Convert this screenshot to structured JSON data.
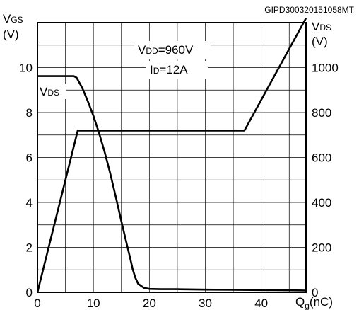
{
  "chart_data": {
    "type": "line",
    "figure_id": "GIPD300320151058MT",
    "y_left_label_main": "V",
    "y_left_label_sub": "GS",
    "y_left_unit": "(V)",
    "y_right_label_main": "V",
    "y_right_label_sub": "DS",
    "y_right_unit": "(V)",
    "x_label_main": "Q",
    "x_label_sub": "g",
    "x_label_unit": "(nC)",
    "xlim": [
      0,
      48
    ],
    "ylim_left": [
      0,
      12
    ],
    "ylim_right": [
      0,
      1200
    ],
    "x_ticks": [
      0,
      10,
      20,
      30,
      40
    ],
    "y_left_ticks": [
      0,
      2,
      4,
      6,
      8,
      10
    ],
    "y_right_ticks": [
      0,
      200,
      400,
      600,
      800,
      1000
    ],
    "grid": true,
    "annotations": [
      {
        "main": "V",
        "sub": "DD",
        "rest": "=960V"
      },
      {
        "main": "I",
        "sub": "D",
        "rest": "=12A"
      }
    ],
    "series": [
      {
        "name": "VGS",
        "axis": "left",
        "x": [
          0,
          7.2,
          37,
          48
        ],
        "y": [
          0,
          7.2,
          7.2,
          12.2
        ]
      },
      {
        "name": "VDS",
        "label_main": "V",
        "label_sub": "DS",
        "axis": "right",
        "x": [
          0,
          6.5,
          7,
          8,
          9,
          10,
          11,
          12,
          13,
          14,
          15,
          16,
          16.5,
          17,
          17.5,
          18,
          19,
          20,
          22,
          25,
          30,
          35,
          40,
          45,
          48
        ],
        "y": [
          962,
          962,
          955,
          910,
          850,
          785,
          710,
          625,
          530,
          425,
          315,
          210,
          160,
          105,
          65,
          38,
          20,
          15,
          14,
          14,
          12,
          11,
          10,
          9,
          8
        ]
      }
    ]
  }
}
